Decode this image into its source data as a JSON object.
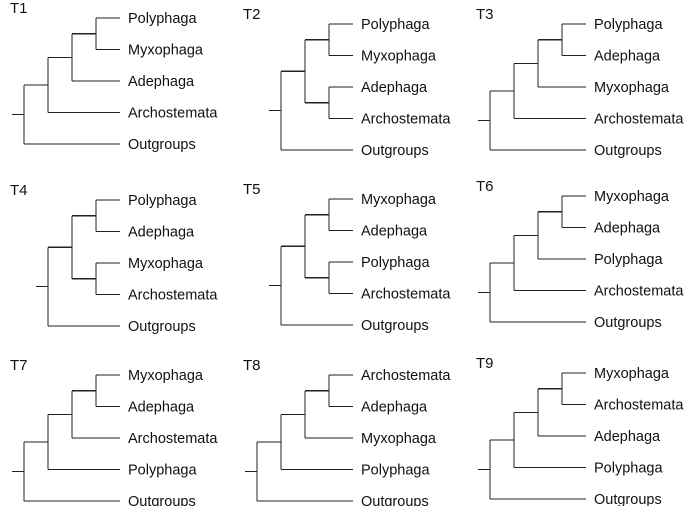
{
  "colors": {
    "line": "#222222",
    "text": "#111111",
    "background": "#ffffff"
  },
  "trees": [
    {
      "title": "T1",
      "taxa": [
        "Polyphaga",
        "Myxophaga",
        "Adephaga",
        "Archostemata",
        "Outgroups"
      ],
      "topology": [
        [
          [
            [
              0,
              1
            ],
            2
          ],
          3
        ],
        4
      ]
    },
    {
      "title": "T2",
      "taxa": [
        "Polyphaga",
        "Myxophaga",
        "Adephaga",
        "Archostemata",
        "Outgroups"
      ],
      "topology": [
        [
          [
            0,
            1
          ],
          [
            2,
            3
          ]
        ],
        4
      ]
    },
    {
      "title": "T3",
      "taxa": [
        "Polyphaga",
        "Adephaga",
        "Myxophaga",
        "Archostemata",
        "Outgroups"
      ],
      "topology": [
        [
          [
            [
              0,
              1
            ],
            2
          ],
          3
        ],
        4
      ]
    },
    {
      "title": "T4",
      "taxa": [
        "Polyphaga",
        "Adephaga",
        "Myxophaga",
        "Archostemata",
        "Outgroups"
      ],
      "topology": [
        [
          [
            0,
            1
          ],
          [
            2,
            3
          ]
        ],
        4
      ]
    },
    {
      "title": "T5",
      "taxa": [
        "Myxophaga",
        "Adephaga",
        "Polyphaga",
        "Archostemata",
        "Outgroups"
      ],
      "topology": [
        [
          [
            0,
            1
          ],
          [
            2,
            3
          ]
        ],
        4
      ]
    },
    {
      "title": "T6",
      "taxa": [
        "Myxophaga",
        "Adephaga",
        "Polyphaga",
        "Archostemata",
        "Outgroups"
      ],
      "topology": [
        [
          [
            [
              0,
              1
            ],
            2
          ],
          3
        ],
        4
      ]
    },
    {
      "title": "T7",
      "taxa": [
        "Myxophaga",
        "Adephaga",
        "Archostemata",
        "Polyphaga",
        "Outgroups"
      ],
      "topology": [
        [
          [
            [
              0,
              1
            ],
            2
          ],
          3
        ],
        4
      ]
    },
    {
      "title": "T8",
      "taxa": [
        "Archostemata",
        "Adephaga",
        "Myxophaga",
        "Polyphaga",
        "Outgroups"
      ],
      "topology": [
        [
          [
            [
              0,
              1
            ],
            2
          ],
          3
        ],
        4
      ]
    },
    {
      "title": "T9",
      "taxa": [
        "Myxophaga",
        "Archostemata",
        "Adephaga",
        "Polyphaga",
        "Outgroups"
      ],
      "topology": [
        [
          [
            [
              0,
              1
            ],
            2
          ],
          3
        ],
        4
      ]
    }
  ]
}
